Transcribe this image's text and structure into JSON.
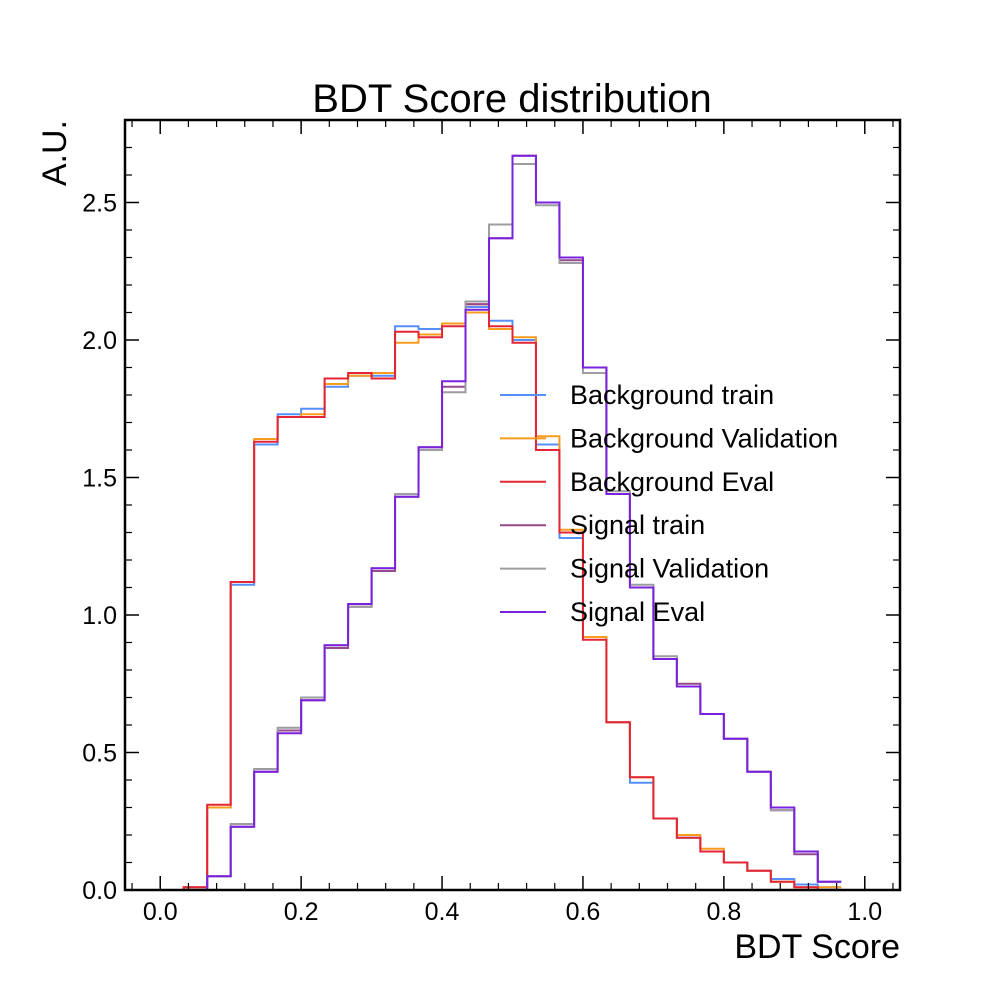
{
  "chart_data": {
    "type": "line",
    "title": "BDT Score distribution",
    "xlabel": "BDT Score",
    "ylabel": "A.U.",
    "xlim": [
      -0.05,
      1.05
    ],
    "ylim": [
      0,
      2.8
    ],
    "xticks": [
      "0.0",
      "0.2",
      "0.4",
      "0.6",
      "0.8",
      "1.0"
    ],
    "yticks": [
      "0.0",
      "0.5",
      "1.0",
      "1.5",
      "2.0",
      "2.5"
    ],
    "grid": false,
    "legend_position": "center-right",
    "bin_edges": [
      0.0,
      0.0333,
      0.0667,
      0.1,
      0.1333,
      0.1667,
      0.2,
      0.2333,
      0.2667,
      0.3,
      0.3333,
      0.3667,
      0.4,
      0.4333,
      0.4667,
      0.5,
      0.5333,
      0.5667,
      0.6,
      0.6333,
      0.6667,
      0.7,
      0.7333,
      0.7667,
      0.8,
      0.8333,
      0.8667,
      0.9,
      0.9333,
      0.9667
    ],
    "series": [
      {
        "name": "Background train",
        "color": "#5790fc",
        "values": [
          0.0,
          0.01,
          0.3,
          1.11,
          1.62,
          1.73,
          1.75,
          1.83,
          1.87,
          1.87,
          2.05,
          2.04,
          2.06,
          2.12,
          2.07,
          2.0,
          1.62,
          1.28,
          0.92,
          0.61,
          0.39,
          0.26,
          0.19,
          0.14,
          0.1,
          0.07,
          0.04,
          0.02,
          0.01
        ]
      },
      {
        "name": "Background Validation",
        "color": "#f89c20",
        "values": [
          0.0,
          0.01,
          0.3,
          1.12,
          1.64,
          1.72,
          1.73,
          1.84,
          1.87,
          1.88,
          1.99,
          2.02,
          2.06,
          2.1,
          2.04,
          2.01,
          1.65,
          1.31,
          0.92,
          0.61,
          0.41,
          0.26,
          0.2,
          0.15,
          0.1,
          0.07,
          0.03,
          0.01,
          0.01
        ]
      },
      {
        "name": "Background Eval",
        "color": "#e42536",
        "values": [
          0.0,
          0.01,
          0.31,
          1.12,
          1.63,
          1.72,
          1.72,
          1.86,
          1.88,
          1.86,
          2.03,
          2.01,
          2.05,
          2.13,
          2.05,
          1.99,
          1.6,
          1.3,
          0.91,
          0.61,
          0.41,
          0.26,
          0.19,
          0.14,
          0.1,
          0.07,
          0.03,
          0.01,
          0.0
        ]
      },
      {
        "name": "Signal train",
        "color": "#964a8b",
        "values": [
          0.0,
          0.0,
          0.05,
          0.23,
          0.43,
          0.58,
          0.69,
          0.88,
          1.03,
          1.16,
          1.43,
          1.61,
          1.83,
          2.13,
          2.37,
          2.67,
          2.5,
          2.29,
          1.9,
          1.44,
          1.1,
          0.84,
          0.75,
          0.64,
          0.55,
          0.43,
          0.29,
          0.13,
          0.03
        ]
      },
      {
        "name": "Signal Validation",
        "color": "#9c9ca1",
        "values": [
          0.0,
          0.0,
          0.05,
          0.24,
          0.44,
          0.59,
          0.7,
          0.89,
          1.03,
          1.17,
          1.44,
          1.6,
          1.81,
          2.14,
          2.42,
          2.64,
          2.49,
          2.28,
          1.88,
          1.45,
          1.11,
          0.85,
          0.74,
          0.64,
          0.55,
          0.43,
          0.29,
          0.14,
          0.03
        ]
      },
      {
        "name": "Signal Eval",
        "color": "#7a21dd",
        "values": [
          0.0,
          0.0,
          0.05,
          0.23,
          0.43,
          0.57,
          0.69,
          0.89,
          1.04,
          1.17,
          1.43,
          1.61,
          1.85,
          2.11,
          2.37,
          2.67,
          2.5,
          2.3,
          1.9,
          1.44,
          1.1,
          0.84,
          0.74,
          0.64,
          0.55,
          0.43,
          0.3,
          0.14,
          0.03
        ]
      }
    ]
  }
}
